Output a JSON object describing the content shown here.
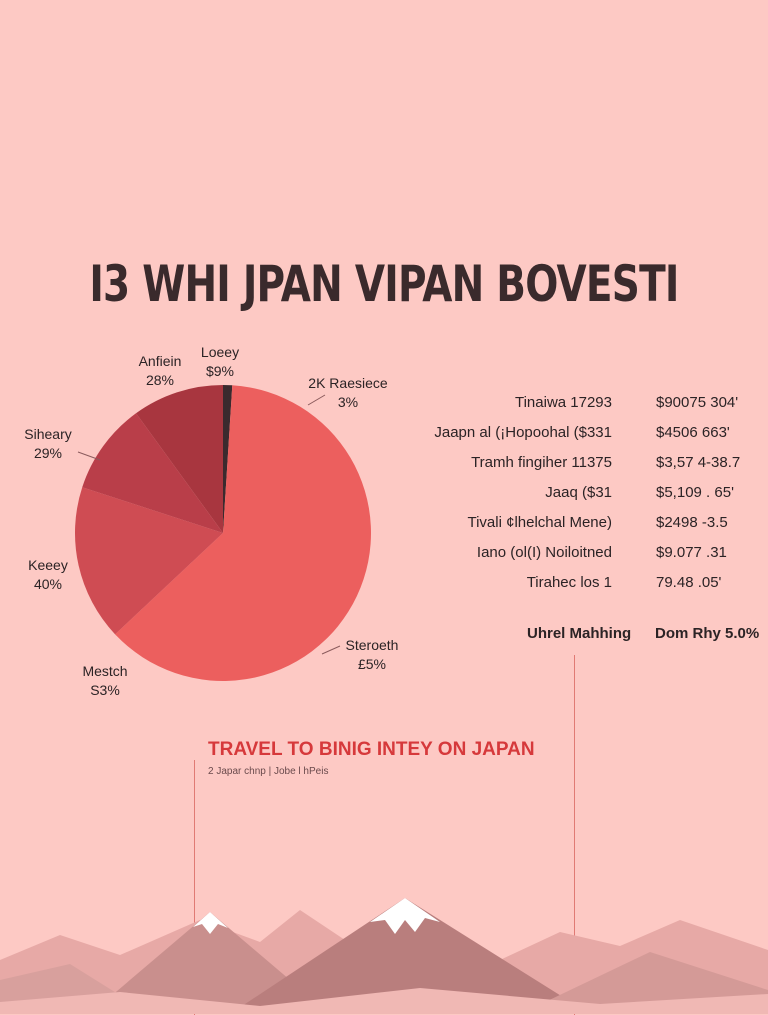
{
  "title": "I3 WHI JPAN VIPAN BOVESTI",
  "chart_data": {
    "type": "pie",
    "title": "I3 WHI JPAN VIPAN BOVESTI",
    "slices": [
      {
        "label": "Loeey",
        "pct": "$9%",
        "value": 1,
        "color": "#3b2a2e"
      },
      {
        "label": "Steroeth",
        "pct": "£5%",
        "value": 62,
        "color": "#ec5f5e"
      },
      {
        "label": "Keeey",
        "pct": "40%",
        "value": 17,
        "color": "#cf4c53"
      },
      {
        "label": "Siheary",
        "pct": "29%",
        "value": 10,
        "color": "#b93e49"
      },
      {
        "label": "Anfiein",
        "pct": "28%",
        "value": 10,
        "color": "#a8363f"
      }
    ],
    "extra_labels": [
      {
        "label": "2K Raesiece",
        "pct": "3%"
      },
      {
        "label": "Mestch",
        "pct": "S3%"
      }
    ],
    "legend": "none",
    "grid": false
  },
  "table": {
    "rows": [
      {
        "name": "Tinaiwa 17293",
        "value": "$90075 304'"
      },
      {
        "name": "Jaapn al (¡Hopoohal ($331",
        "value": "$4506 663'"
      },
      {
        "name": "Tramh fingiher 11375",
        "value": "$3,57 4-38.7"
      },
      {
        "name": "Jaaq ($31",
        "value": "$5,109 . 65'"
      },
      {
        "name": "Tivali ¢lhelchal Mene)",
        "value": "$2498 -3.5"
      },
      {
        "name": "Iano (ol(I) Noiloitned",
        "value": "$9.077 .31"
      },
      {
        "name": "Tirahec los 1",
        "value": "79.48 .05'"
      }
    ],
    "footer_label": "Uhrel Mahhing",
    "footer_value": "Dom Rhy 5.0%"
  },
  "section": {
    "heading": "TRAVEL TO BINIG INTEY ON JAPAN",
    "subheading": "2 Japar chnp | Jobe l hPeis"
  },
  "colors": {
    "background": "#fdc9c4",
    "accent": "#d6393b",
    "mountain": "#c98f8d",
    "snow": "#ffffff"
  }
}
